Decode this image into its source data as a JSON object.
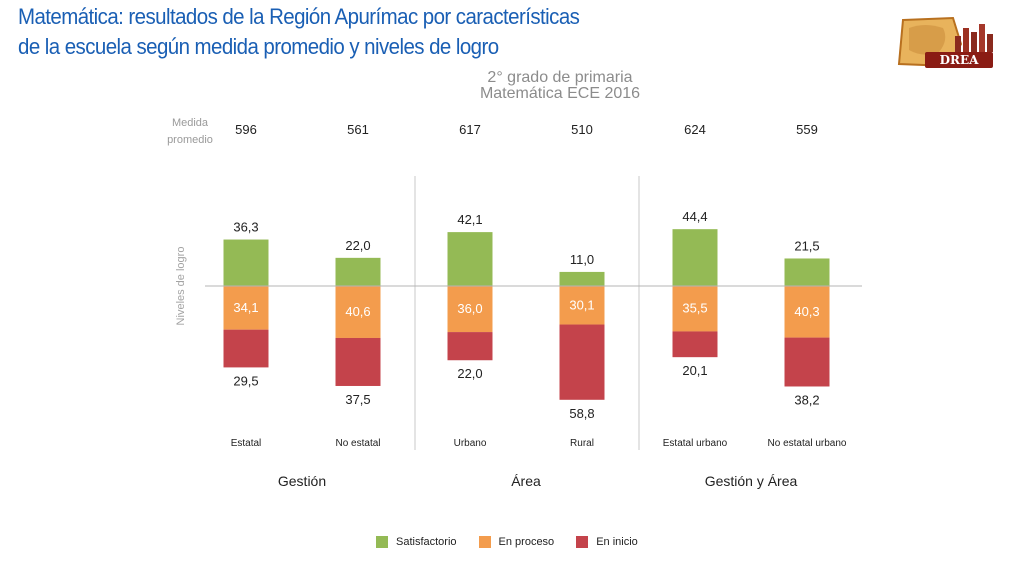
{
  "title_lines": [
    "Matemática: resultados de la Región Apurímac por características",
    "de la  escuela según medida promedio y niveles de   logro"
  ],
  "subtitle_lines": [
    "2° grado de primaria",
    "Matemática ECE 2016"
  ],
  "logo_text": "DREA",
  "colors": {
    "satisfactorio": "#94ba55",
    "proceso": "#f39c4d",
    "inicio": "#c4434b",
    "title": "#1a5fb4",
    "baseline": "#b5b5b5"
  },
  "chart_data": {
    "type": "bar",
    "stacked": true,
    "diverging": true,
    "ylabel": "Niveles de logro",
    "measure_label": [
      "Medida",
      "promedio"
    ],
    "categories": [
      "Estatal",
      "No estatal",
      "Urbano",
      "Rural",
      "Estatal urbano",
      "No estatal urbano"
    ],
    "groups": [
      {
        "label": "Gestión",
        "categories": [
          "Estatal",
          "No estatal"
        ]
      },
      {
        "label": "Área",
        "categories": [
          "Urbano",
          "Rural"
        ]
      },
      {
        "label": "Gestión y Área",
        "categories": [
          "Estatal urbano",
          "No estatal urbano"
        ]
      }
    ],
    "medida_promedio": [
      596,
      561,
      617,
      510,
      624,
      559
    ],
    "series": [
      {
        "name": "Satisfactorio",
        "values": [
          36.3,
          22.0,
          42.1,
          11.0,
          44.4,
          21.5
        ]
      },
      {
        "name": "En proceso",
        "values": [
          34.1,
          40.6,
          36.0,
          30.1,
          35.5,
          40.3
        ]
      },
      {
        "name": "En inicio",
        "values": [
          29.5,
          37.5,
          22.0,
          58.8,
          20.1,
          38.2
        ]
      }
    ],
    "value_labels": {
      "Satisfactorio": [
        "36,3",
        "22,0",
        "42,1",
        "11,0",
        "44,4",
        "21,5"
      ],
      "En proceso": [
        "34,1",
        "40,6",
        "36,0",
        "30,1",
        "35,5",
        "40,3"
      ],
      "En inicio": [
        "29,5",
        "37,5",
        "22,0",
        "58,8",
        "20,1",
        "38,2"
      ]
    },
    "legend": [
      "Satisfactorio",
      "En proceso",
      "En inicio"
    ],
    "legend_position": "bottom"
  }
}
